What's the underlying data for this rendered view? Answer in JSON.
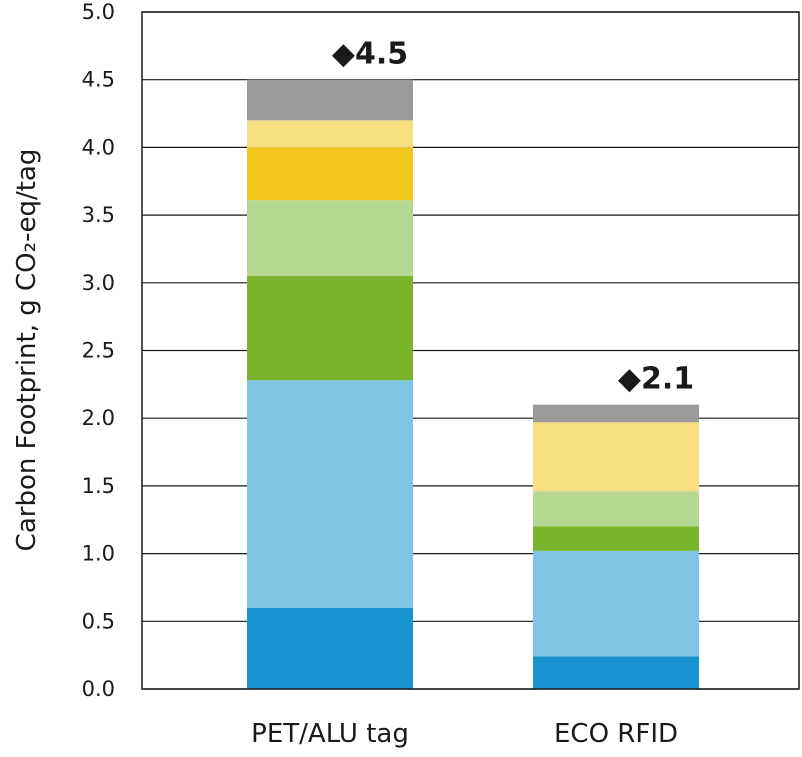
{
  "chart_data": {
    "type": "bar",
    "stacked": true,
    "categories": [
      "PET/ALU tag",
      "ECO RFID"
    ],
    "ylabel": "Carbon Footprint, g CO₂-eq/tag",
    "ylim": [
      0,
      5
    ],
    "yticks": [
      "0.0",
      "0.5",
      "1.0",
      "1.5",
      "2.0",
      "2.5",
      "3.0",
      "3.5",
      "4.0",
      "4.5",
      "5.0"
    ],
    "grid": true,
    "legend": "none",
    "totals": [
      "◆4.5",
      "◆2.1"
    ],
    "series": [
      {
        "color": "#1a94d0",
        "values": [
          0.6,
          0.24
        ]
      },
      {
        "color": "#80c4e3",
        "values": [
          1.68,
          0.78
        ]
      },
      {
        "color": "#79b42c",
        "values": [
          0.77,
          0.18
        ]
      },
      {
        "color": "#b5d78f",
        "values": [
          0.56,
          0.26
        ]
      },
      {
        "color": "#f2c81e",
        "values": [
          0.39,
          0.0
        ]
      },
      {
        "color": "#f7df81",
        "values": [
          0.2,
          0.51
        ]
      },
      {
        "color": "#9a9a9a",
        "values": [
          0.3,
          0.13
        ]
      }
    ]
  }
}
